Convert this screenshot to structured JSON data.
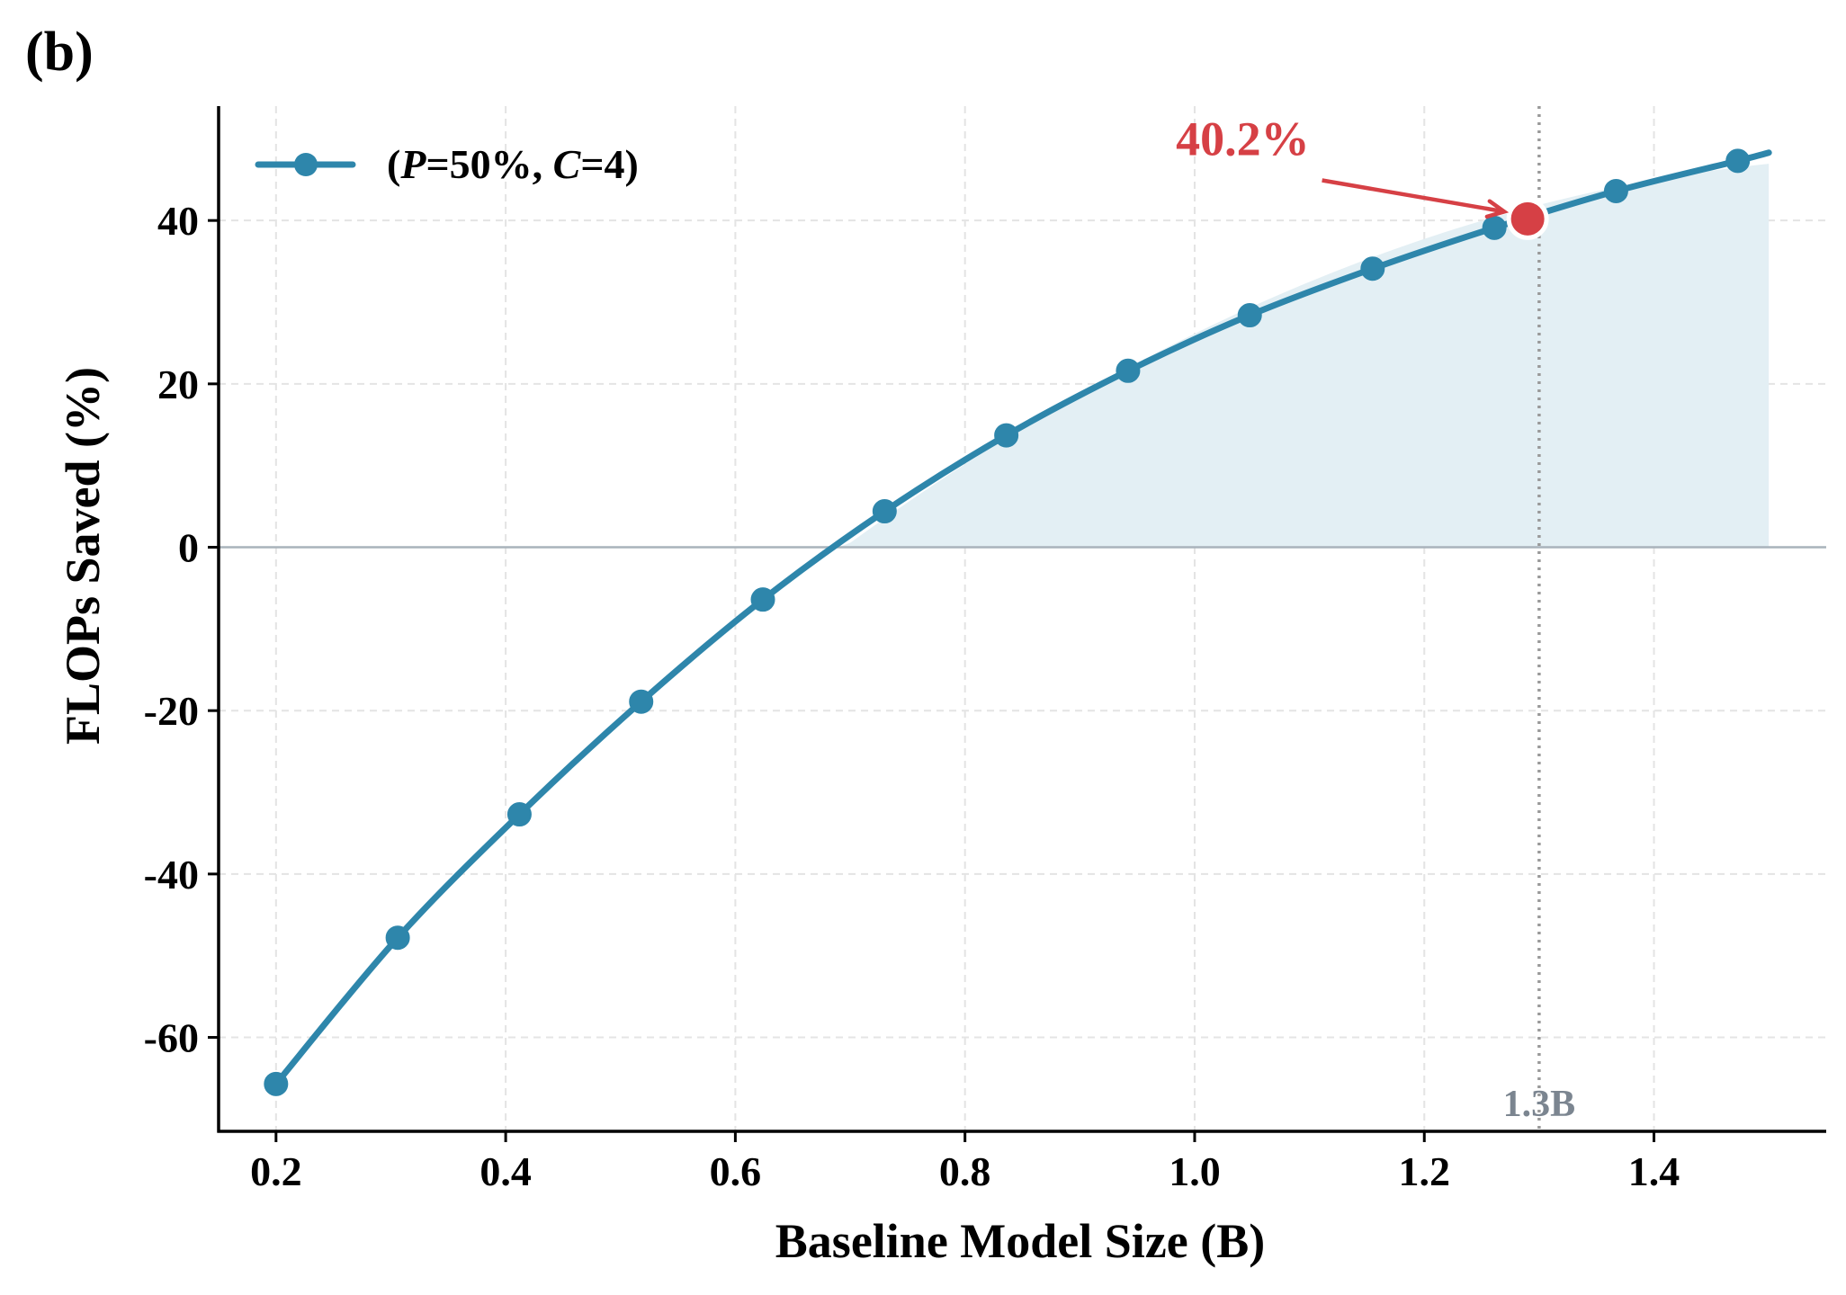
{
  "panel_label": "(b)",
  "colors": {
    "line": "#2e86ab",
    "fill": "#e3eff4",
    "highlight": "#d64045",
    "grid": "#e4e4e4",
    "zero_line": "#a9b3bb",
    "vline": "#999999",
    "vline_label": "#7b8590"
  },
  "chart_data": {
    "type": "line",
    "title": "",
    "xlabel": "Baseline Model Size (B)",
    "ylabel": "FLOPs Saved (%)",
    "xlim": [
      0.15,
      1.55
    ],
    "ylim": [
      -71.5,
      54
    ],
    "xticks": [
      0.2,
      0.4,
      0.6,
      0.8,
      1.0,
      1.2,
      1.4
    ],
    "xtick_labels": [
      "0.2",
      "0.4",
      "0.6",
      "0.8",
      "1.0",
      "1.2",
      "1.4"
    ],
    "yticks": [
      -60,
      -40,
      -20,
      0,
      20,
      40
    ],
    "ytick_labels": [
      "-60",
      "-40",
      "-20",
      "0",
      "20",
      "40"
    ],
    "grid": true,
    "legend_position": "top-left",
    "series": [
      {
        "name": "(P=50%, C=4)",
        "legend_parts": [
          {
            "text": "(",
            "italic": false
          },
          {
            "text": "P",
            "italic": true
          },
          {
            "text": "=50%, ",
            "italic": false
          },
          {
            "text": "C",
            "italic": true
          },
          {
            "text": "=4)",
            "italic": false
          }
        ],
        "x": [
          0.2,
          0.306,
          0.412,
          0.518,
          0.624,
          0.73,
          0.836,
          0.942,
          1.048,
          1.155,
          1.261,
          1.367,
          1.473
        ],
        "y": [
          -65.7,
          -47.8,
          -32.7,
          -18.9,
          -6.4,
          4.4,
          13.7,
          21.6,
          28.4,
          34.1,
          39.1,
          43.6,
          47.3
        ],
        "curve_end": {
          "x": 1.5,
          "y": 48.3
        }
      }
    ],
    "fill_region": {
      "from_x": 0.69,
      "to_x": 1.5,
      "baseline": 0
    },
    "reference_line": {
      "x": 1.3,
      "label": "1.3B"
    },
    "highlight_point": {
      "x": 1.29,
      "y": 40.2
    },
    "annotation": {
      "text": "40.2%",
      "text_x": 1.1,
      "text_y": 48
    }
  }
}
